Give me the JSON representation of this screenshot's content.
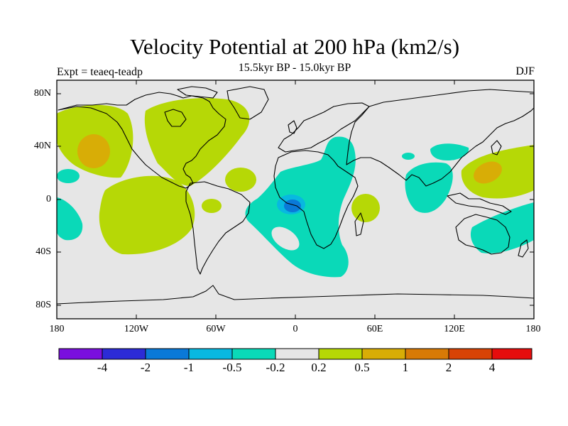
{
  "title": "Velocity Potential at 200 hPa (km2/s)",
  "subtitle": "15.5kyr BP - 15.0kyr BP",
  "left_label": "Expt = teaeq-teadp",
  "right_label": "DJF",
  "map": {
    "projection": "cylindrical equidistant",
    "lon_range": [
      -180,
      180
    ],
    "lat_range": [
      -90,
      90
    ],
    "lat_ticks": [
      "80N",
      "40N",
      "0",
      "40S",
      "80S"
    ],
    "lon_ticks": [
      "180",
      "120W",
      "60W",
      "0",
      "60E",
      "120E",
      "180"
    ]
  },
  "colorbar": {
    "labels": [
      "-4",
      "-2",
      "-1",
      "-0.5",
      "-0.2",
      "0.2",
      "0.5",
      "1",
      "2",
      "4"
    ],
    "colors": [
      "#7a0fde",
      "#2c2bd6",
      "#0a79d8",
      "#08b8e0",
      "#0ad9b8",
      "#e6e6e6",
      "#b6d806",
      "#d8ad06",
      "#d87a06",
      "#d84306",
      "#e60d0d"
    ]
  },
  "colors": {
    "background": "#e6e6e6",
    "coast": "#000000",
    "pos_weak": "#b6d806",
    "pos_mid": "#d8ad06",
    "neg_weak": "#0ad9b8",
    "neg_mid": "#08b8e0",
    "neg_strong": "#0a79d8"
  }
}
